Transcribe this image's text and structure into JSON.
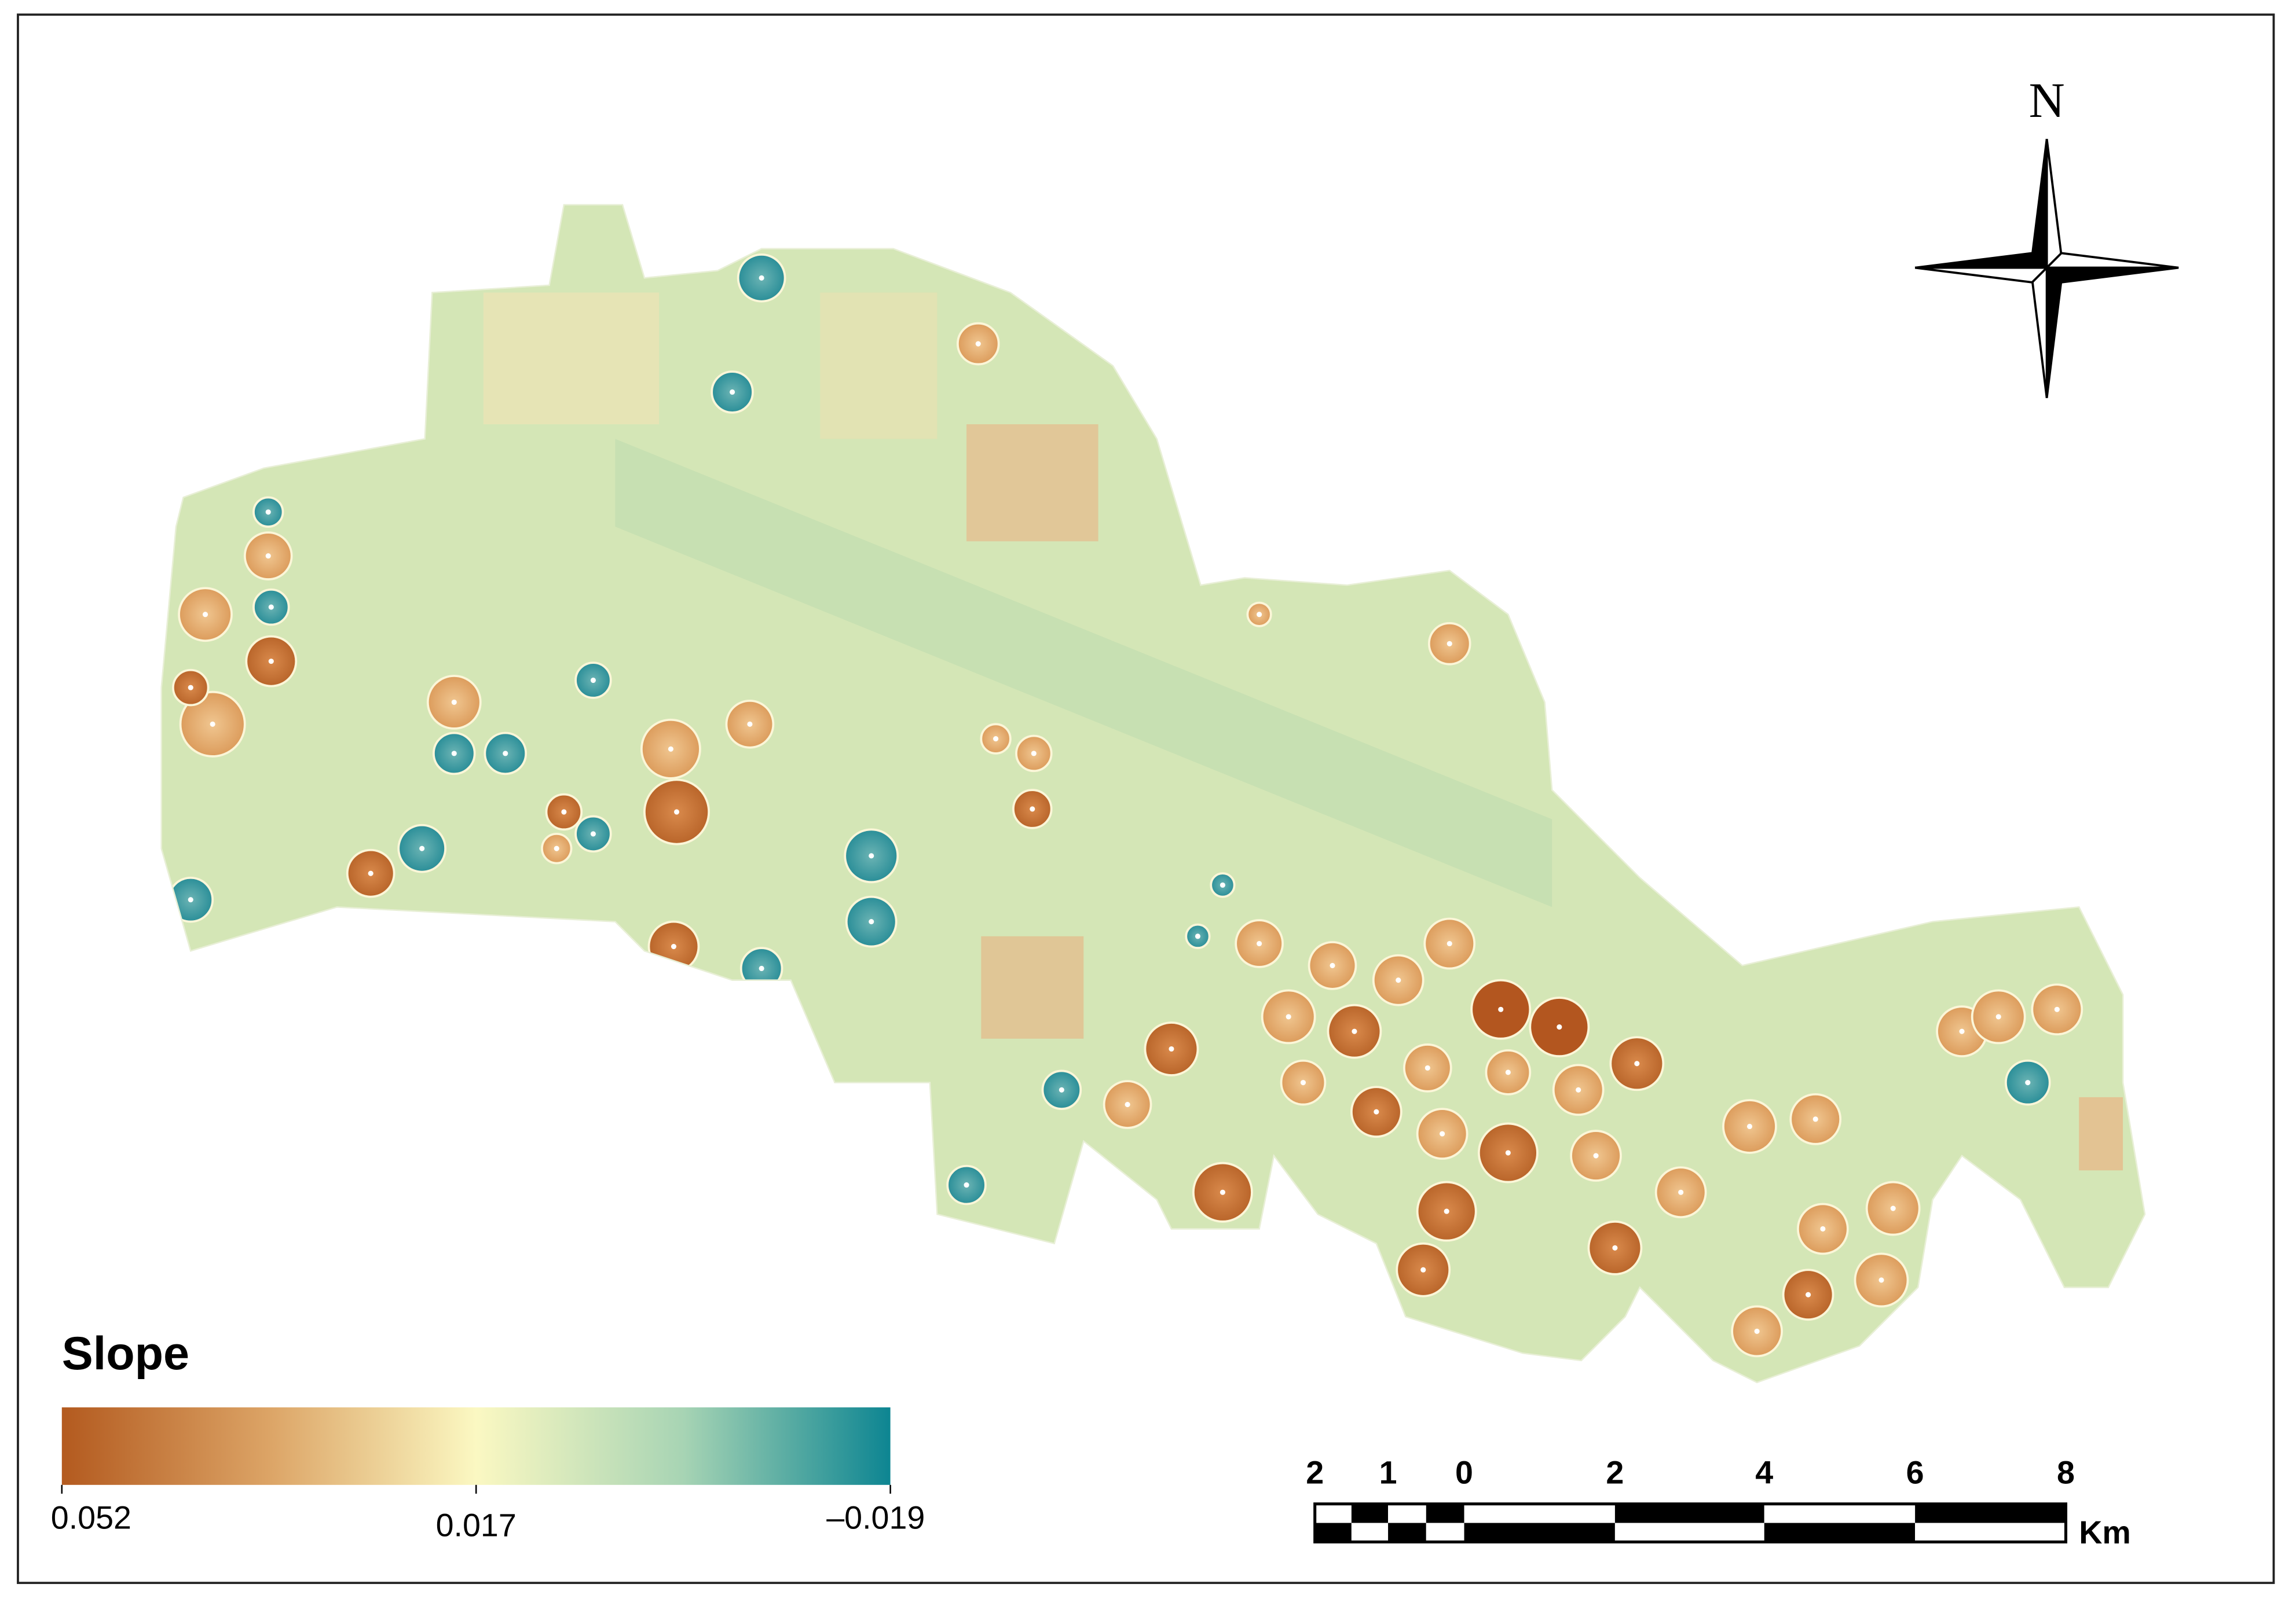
{
  "legend": {
    "title": "Slope",
    "labels": [
      "0.052",
      "0.017",
      "–0.019"
    ]
  },
  "north_arrow": {
    "label": "N"
  },
  "scale_bar": {
    "labels": [
      "2",
      "1",
      "0",
      "2",
      "4",
      "6",
      "8"
    ],
    "unit": "Km"
  }
}
